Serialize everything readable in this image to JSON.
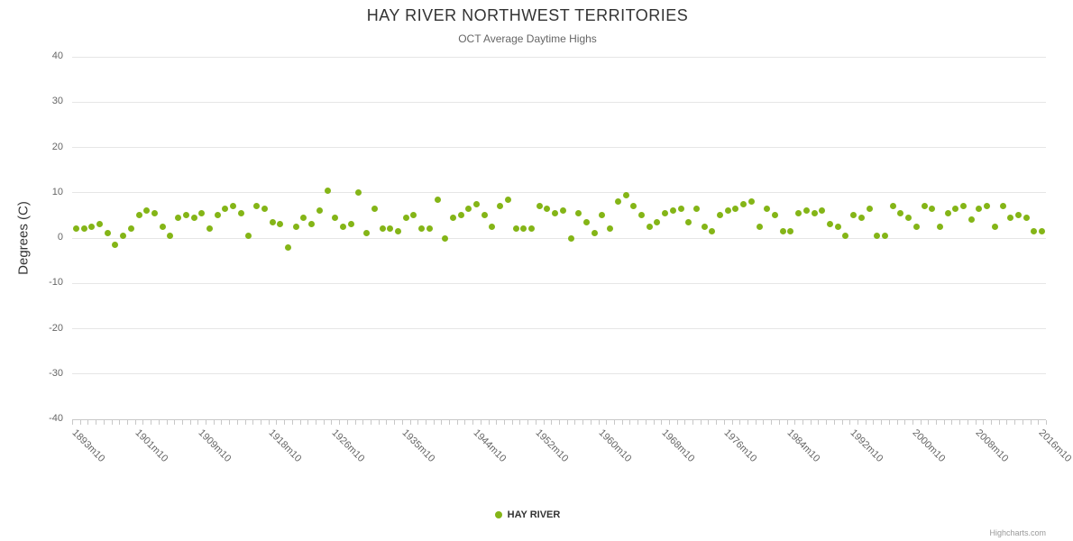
{
  "title": "HAY RIVER NORTHWEST TERRITORIES",
  "subtitle": "OCT Average Daytime Highs",
  "y_axis_title": "Degrees (C)",
  "legend": {
    "label": "HAY RIVER",
    "marker_color": "#84b517"
  },
  "credit": "Highcharts.com",
  "chart_data": {
    "type": "scatter",
    "title": "HAY RIVER NORTHWEST TERRITORIES",
    "subtitle": "OCT Average Daytime Highs",
    "series_name": "HAY RIVER",
    "marker_color": "#84b517",
    "xlabel": "",
    "ylabel": "Degrees (C)",
    "ylim": [
      -40,
      40
    ],
    "y_ticks": [
      40,
      30,
      20,
      10,
      0,
      -10,
      -20,
      -30,
      -40
    ],
    "grid": true,
    "legend_position": "bottom-center",
    "category_format": "YYYYm10",
    "year_start": 1893,
    "year_end": 2016,
    "x_tick_labels": [
      "1893m10",
      "1901m10",
      "1909m10",
      "1918m10",
      "1926m10",
      "1935m10",
      "1944m10",
      "1952m10",
      "1960m10",
      "1968m10",
      "1976m10",
      "1984m10",
      "1992m10",
      "2000m10",
      "2008m10",
      "2016m10"
    ],
    "values": [
      2,
      2,
      2.5,
      3,
      1,
      -1.5,
      0.5,
      2,
      5,
      6,
      5.5,
      2.5,
      0.5,
      4.5,
      5,
      4.5,
      5.5,
      2,
      5,
      6.5,
      7,
      5.5,
      0.5,
      7,
      6.5,
      3.5,
      3,
      -2,
      2.5,
      4.5,
      3,
      6,
      10.5,
      4.5,
      2.5,
      3,
      10,
      1,
      6.5,
      2,
      2,
      1.5,
      4.5,
      5,
      2,
      2,
      8.5,
      0,
      4.5,
      5,
      6.5,
      7.5,
      5,
      2.5,
      7,
      8.5,
      2,
      2,
      2,
      7,
      6.5,
      5.5,
      6,
      0,
      5.5,
      3.5,
      1,
      5,
      2,
      8,
      9.5,
      7,
      5,
      2.5,
      3.5,
      5.5,
      6,
      6.5,
      3.5,
      6.5,
      2.5,
      1.5,
      5,
      6,
      6.5,
      7.5,
      8,
      2.5,
      6.5,
      5,
      1.5,
      1.5,
      5.5,
      6,
      5.5,
      6,
      3,
      2.5,
      0.5,
      5,
      4.5,
      6.5,
      0.5,
      0.5,
      7,
      5.5,
      4.5,
      2.5,
      7,
      6.5,
      2.5,
      5.5,
      6.5,
      7,
      4,
      6.5,
      7,
      2.5,
      7,
      4.5,
      5,
      4.5,
      1.5,
      1.5
    ]
  }
}
